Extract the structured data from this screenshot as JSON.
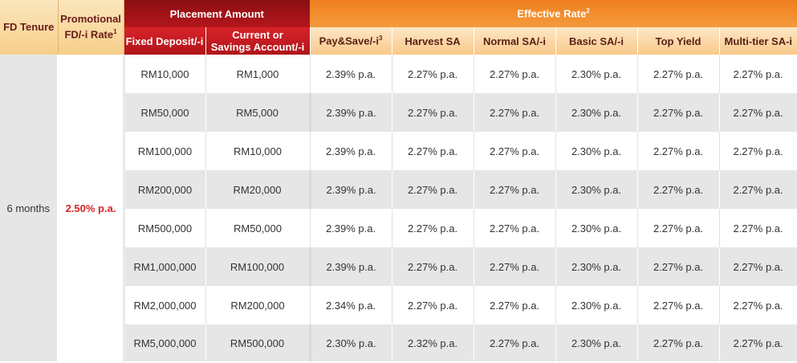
{
  "headers": {
    "fd_tenure": "FD Tenure",
    "promo_rate_line1": "Promotional",
    "promo_rate_line2": "FD/-i Rate",
    "promo_rate_sup": "1",
    "placement_amount": "Placement Amount",
    "effective_rate": "Effective Rate",
    "effective_rate_sup": "2",
    "fixed_deposit": "Fixed Deposit/-i",
    "current_savings_line1": "Current or",
    "current_savings_line2": "Savings Account/-i",
    "rate_columns": [
      {
        "label": "Pay&Save/-i",
        "sup": "3"
      },
      {
        "label": "Harvest SA",
        "sup": ""
      },
      {
        "label": "Normal SA/-i",
        "sup": ""
      },
      {
        "label": "Basic SA/-i",
        "sup": ""
      },
      {
        "label": "Top Yield",
        "sup": ""
      },
      {
        "label": "Multi-tier SA-i",
        "sup": ""
      }
    ]
  },
  "tenure": "6 months",
  "promo_rate": "2.50% p.a.",
  "rows": [
    {
      "fd": "RM10,000",
      "sa": "RM1,000",
      "rates": [
        "2.39% p.a.",
        "2.27% p.a.",
        "2.27% p.a.",
        "2.30% p.a.",
        "2.27% p.a.",
        "2.27% p.a."
      ]
    },
    {
      "fd": "RM50,000",
      "sa": "RM5,000",
      "rates": [
        "2.39% p.a.",
        "2.27% p.a.",
        "2.27% p.a.",
        "2.30% p.a.",
        "2.27% p.a.",
        "2.27% p.a."
      ]
    },
    {
      "fd": "RM100,000",
      "sa": "RM10,000",
      "rates": [
        "2.39% p.a.",
        "2.27% p.a.",
        "2.27% p.a.",
        "2.30% p.a.",
        "2.27% p.a.",
        "2.27% p.a."
      ]
    },
    {
      "fd": "RM200,000",
      "sa": "RM20,000",
      "rates": [
        "2.39% p.a.",
        "2.27% p.a.",
        "2.27% p.a.",
        "2.30% p.a.",
        "2.27% p.a.",
        "2.27% p.a."
      ]
    },
    {
      "fd": "RM500,000",
      "sa": "RM50,000",
      "rates": [
        "2.39% p.a.",
        "2.27% p.a.",
        "2.27% p.a.",
        "2.30% p.a.",
        "2.27% p.a.",
        "2.27% p.a."
      ]
    },
    {
      "fd": "RM1,000,000",
      "sa": "RM100,000",
      "rates": [
        "2.39% p.a.",
        "2.27% p.a.",
        "2.27% p.a.",
        "2.30% p.a.",
        "2.27% p.a.",
        "2.27% p.a."
      ]
    },
    {
      "fd": "RM2,000,000",
      "sa": "RM200,000",
      "rates": [
        "2.34% p.a.",
        "2.27% p.a.",
        "2.27% p.a.",
        "2.30% p.a.",
        "2.27% p.a.",
        "2.27% p.a."
      ]
    },
    {
      "fd": "RM5,000,000",
      "sa": "RM500,000",
      "rates": [
        "2.30% p.a.",
        "2.32% p.a.",
        "2.27% p.a.",
        "2.30% p.a.",
        "2.27% p.a.",
        "2.27% p.a."
      ]
    }
  ],
  "colors": {
    "promo_rate": "#d3252a",
    "placement_header": "#a01217",
    "effective_header": "#f07f1e",
    "header_beige": "#f8d89e",
    "row_grey": "#e6e6e6"
  }
}
